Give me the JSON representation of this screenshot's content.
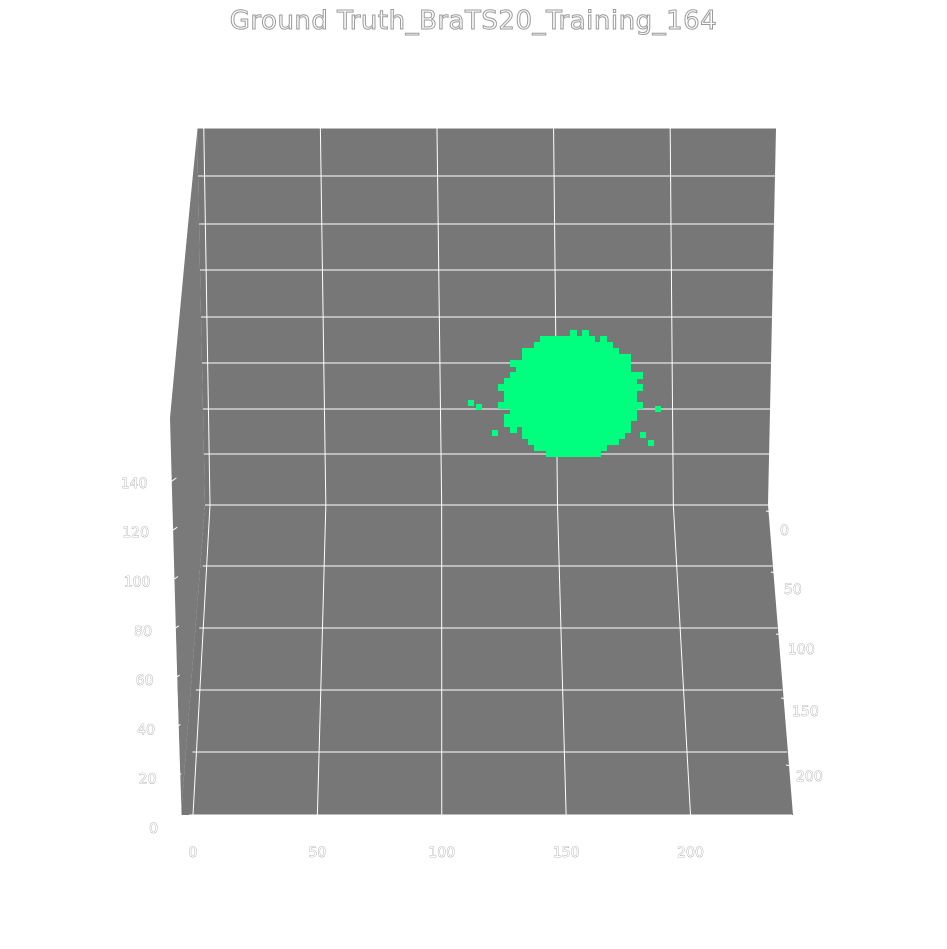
{
  "chart_data": {
    "type": "scatter",
    "projection": "3d",
    "title": "Ground Truth_BraTS20_Training_164",
    "xlabel": "",
    "ylabel": "",
    "zlabel": "",
    "x_ticks": [
      "0",
      "50",
      "100",
      "150",
      "200"
    ],
    "y_ticks": [
      "0",
      "50",
      "100",
      "150",
      "200"
    ],
    "z_ticks": [
      "0",
      "20",
      "40",
      "60",
      "80",
      "100",
      "120",
      "140"
    ],
    "xlim": [
      0,
      240
    ],
    "ylim": [
      0,
      240
    ],
    "zlim": [
      0,
      155
    ],
    "grid": true,
    "pane_color": "#777777",
    "marker_color": "#00ff7f",
    "series": [
      {
        "label_color": "#00ff7f",
        "shape": "tumor region blob",
        "x_range": [
          110,
          190
        ],
        "y_range": [
          60,
          200
        ],
        "z_range": [
          75,
          110
        ],
        "center": [
          150,
          130,
          92
        ]
      }
    ]
  }
}
